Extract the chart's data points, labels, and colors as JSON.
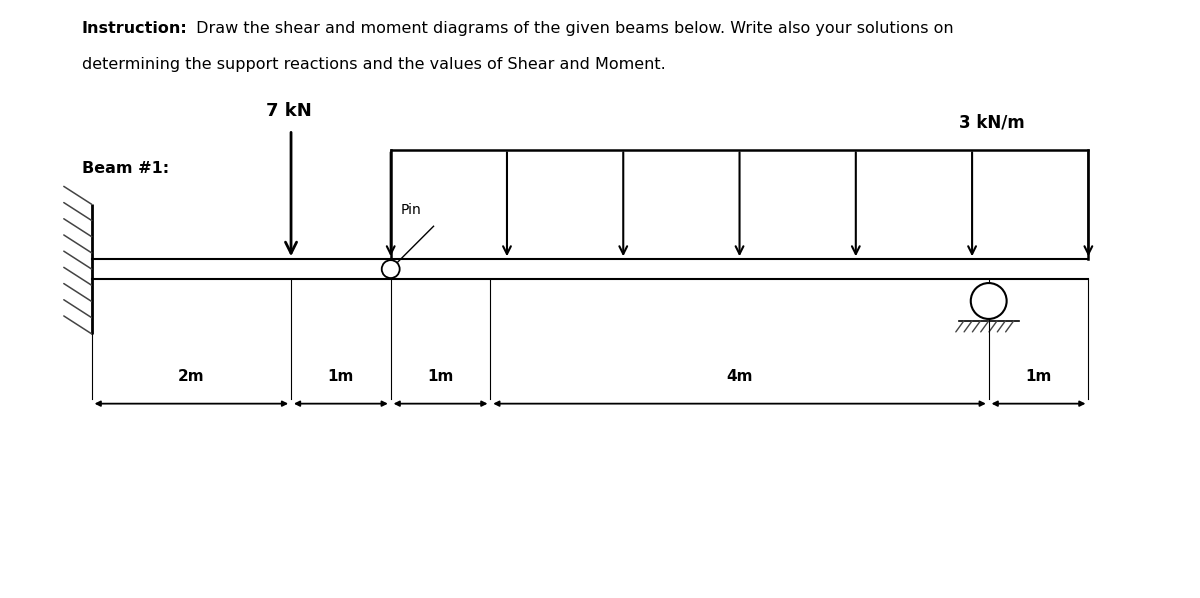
{
  "title_bold": "Instruction:",
  "title_rest": " Draw the shear and moment diagrams of the given beams below. Write also your solutions on",
  "title_line2": "determining the support reactions and the values of Shear and Moment.",
  "beam_label": "Beam #1:",
  "load_point_label": "7 kN",
  "load_dist_label": "3 kN/m",
  "pin_label": "Pin",
  "dims": [
    "2m",
    "1m",
    "1m",
    "4m",
    "1m"
  ],
  "bg_color": "#ffffff",
  "beam_color": "#000000",
  "text_color": "#000000",
  "figsize": [
    12.0,
    5.98
  ],
  "dpi": 100,
  "xlim": [
    0,
    12
  ],
  "ylim": [
    0,
    6
  ]
}
